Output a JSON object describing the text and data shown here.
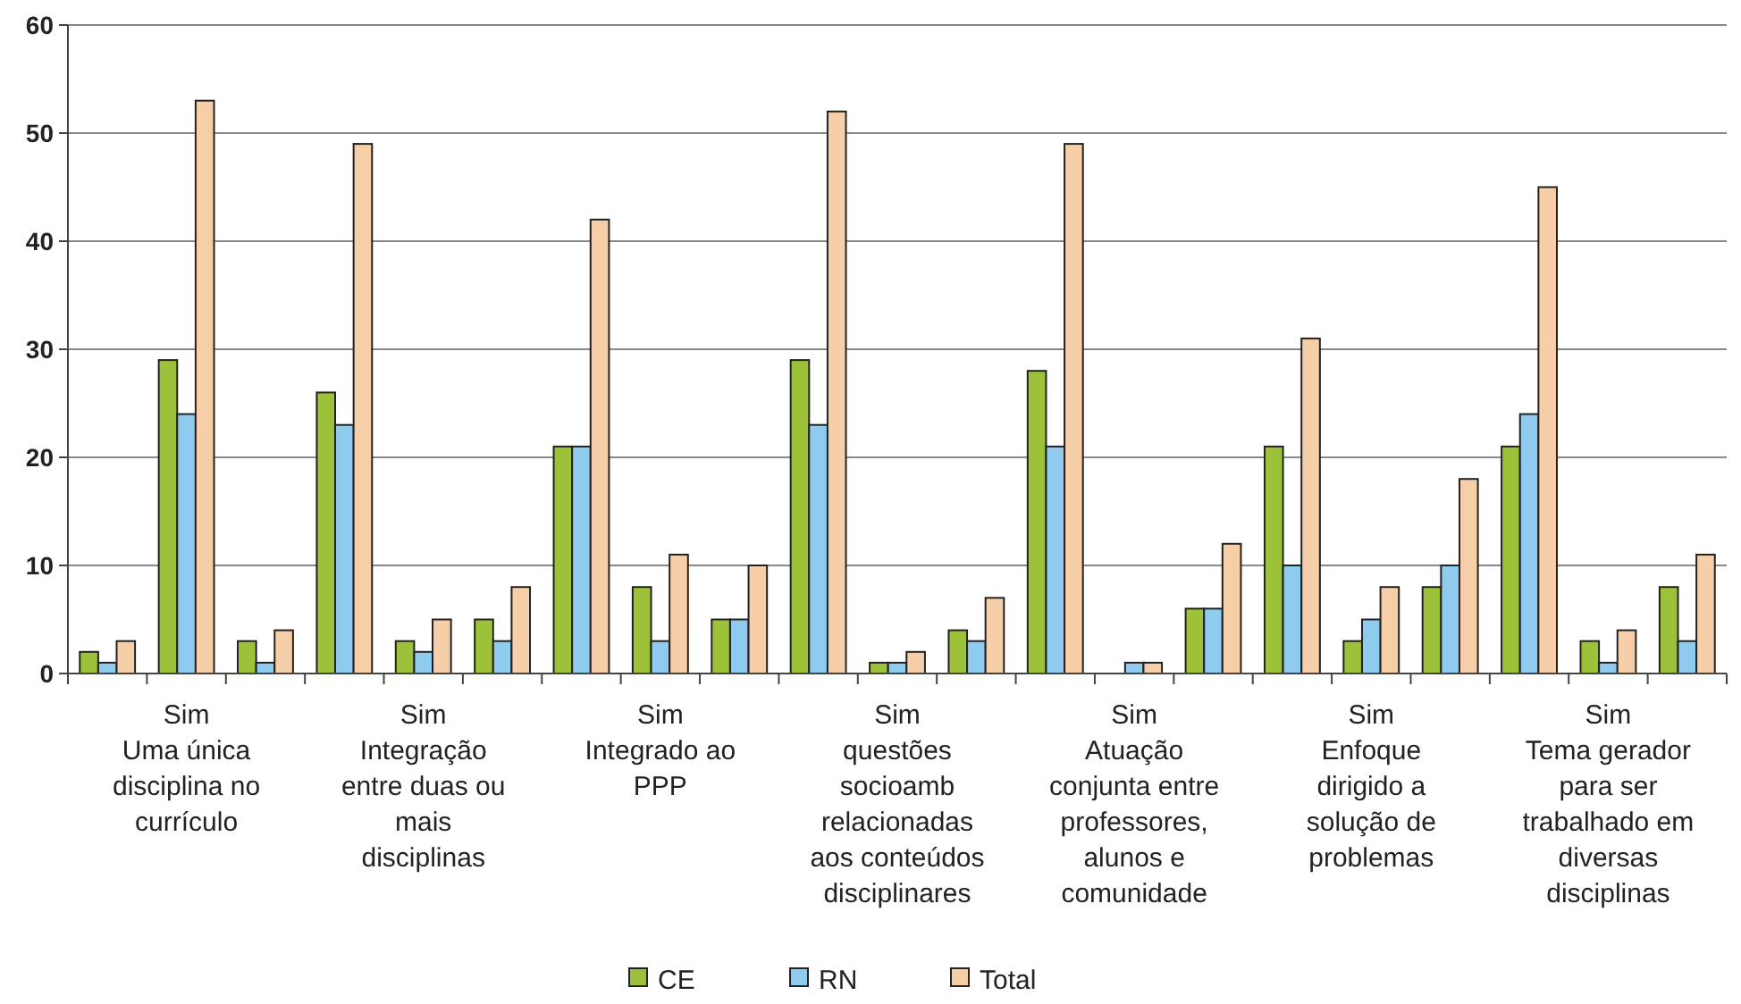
{
  "chart_data": {
    "type": "bar",
    "categories": [
      null,
      "Sim\nUma única\ndisciplina no\ncurrículo",
      null,
      null,
      "Sim\nIntegração\nentre duas ou\nmais\ndisciplinas",
      null,
      null,
      "Sim\nIntegrado ao\nPPP",
      null,
      null,
      "Sim\nquestões\nsocioamb\nrelacionadas\naos conteúdos\ndisciplinares",
      null,
      null,
      "Sim\nAtuação\nconjunta entre\nprofessores,\nalunos e\ncomunidade",
      null,
      null,
      "Sim\nEnfoque\ndirigido a\nsolução de\nproblemas",
      null,
      null,
      "Sim\nTema gerador\npara ser\ntrabalhado em\ndiversas\ndisciplinas",
      null
    ],
    "series": [
      {
        "name": "CE",
        "color": "#9dc23a",
        "values": [
          2,
          29,
          3,
          26,
          3,
          5,
          21,
          8,
          5,
          29,
          1,
          4,
          28,
          0,
          6,
          21,
          3,
          8,
          21,
          3,
          8
        ]
      },
      {
        "name": "RN",
        "color": "#8fcbee",
        "values": [
          1,
          24,
          1,
          23,
          2,
          3,
          21,
          3,
          5,
          23,
          1,
          3,
          21,
          1,
          6,
          10,
          5,
          10,
          24,
          1,
          3
        ]
      },
      {
        "name": "Total",
        "color": "#f6cfa8",
        "values": [
          3,
          53,
          4,
          49,
          5,
          8,
          42,
          11,
          10,
          52,
          2,
          7,
          49,
          1,
          12,
          31,
          8,
          18,
          45,
          4,
          11
        ]
      }
    ],
    "ylim": [
      0,
      60
    ],
    "yticks": [
      0,
      10,
      20,
      30,
      40,
      50,
      60
    ],
    "grid": "y",
    "legend": "bottom"
  }
}
